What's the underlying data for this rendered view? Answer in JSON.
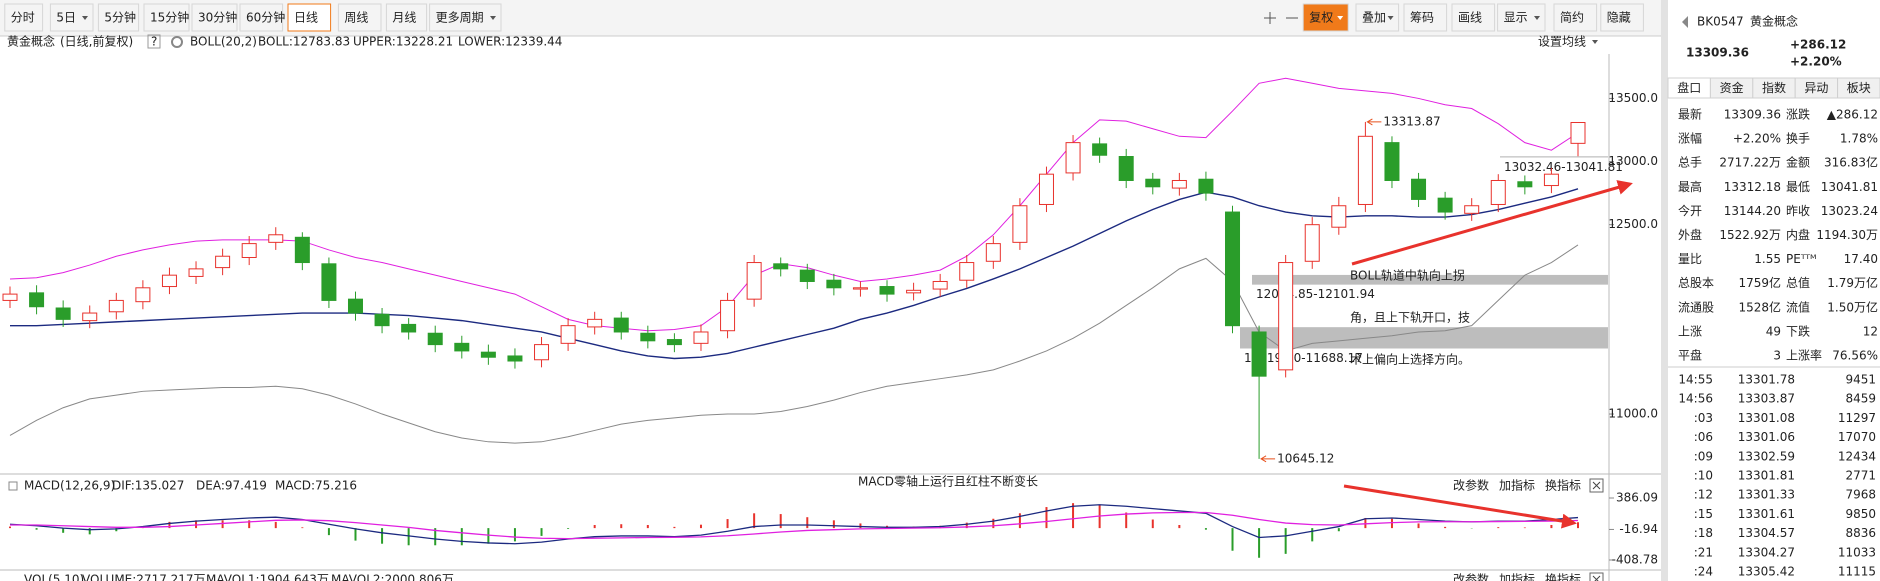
{
  "toolbar": {
    "periods": [
      {
        "label": "分时"
      },
      {
        "label": "5日"
      },
      {
        "label": "5分钟"
      },
      {
        "label": "15分钟"
      },
      {
        "label": "30分钟"
      },
      {
        "label": "60分钟"
      },
      {
        "label": "日线",
        "active": true
      },
      {
        "label": "周线"
      },
      {
        "label": "月线"
      },
      {
        "label": "更多周期"
      }
    ],
    "tools": [
      {
        "label": "复权",
        "active": true
      },
      {
        "label": "叠加"
      },
      {
        "label": "筹码"
      },
      {
        "label": "画线"
      },
      {
        "label": "显示"
      },
      {
        "label": "简约"
      },
      {
        "label": "隐藏"
      }
    ]
  },
  "info": {
    "name": "黄金概念",
    "mode": "(日线,前复权)",
    "help": "?",
    "indicator": "BOLL(20,2)",
    "boll": "BOLL:12783.83",
    "upper": "UPPER:13228.21",
    "lower": "LOWER:12339.44",
    "ma_setting": "设置均线"
  },
  "chart_data": [
    {
      "type": "candlestick",
      "ylim": [
        10525,
        13852
      ],
      "yticks": [
        {
          "value": 13500,
          "label": "13500.0"
        },
        {
          "value": 13000,
          "label": "13000.0"
        },
        {
          "value": 12500,
          "label": "12500.0"
        },
        {
          "value": 11000,
          "label": "11000.0"
        }
      ],
      "up_color": "#e8322c",
      "down_color": "#2a9d2a",
      "open": [
        11900,
        11960,
        11840,
        11740,
        11810,
        11890,
        12010,
        12090,
        12160,
        12240,
        12360,
        12400,
        12190,
        11910,
        11790,
        11710,
        11640,
        11560,
        11490,
        11460,
        11430,
        11560,
        11690,
        11760,
        11640,
        11590,
        11560,
        11660,
        11910,
        12190,
        12140,
        12060,
        11990,
        12010,
        11960,
        11990,
        12060,
        12210,
        12360,
        12660,
        12910,
        13140,
        13040,
        12860,
        12790,
        12860,
        12600,
        11650,
        11350,
        12210,
        12480,
        12660,
        13150,
        12860,
        12710,
        12590,
        12660,
        12840,
        12810,
        13144.2
      ],
      "high": [
        12010,
        12020,
        11900,
        11860,
        11960,
        12060,
        12160,
        12210,
        12310,
        12410,
        12480,
        12440,
        12240,
        11970,
        11840,
        11760,
        11700,
        11620,
        11550,
        11520,
        11610,
        11760,
        11810,
        11810,
        11700,
        11640,
        11710,
        11960,
        12260,
        12240,
        12190,
        12110,
        12050,
        12060,
        12040,
        12110,
        12260,
        12410,
        12710,
        12960,
        13210,
        13190,
        13100,
        12910,
        12910,
        12920,
        12650,
        11700,
        12260,
        12560,
        12720,
        13313.87,
        13200,
        12910,
        12760,
        12710,
        12900,
        12890,
        12950,
        13312.18
      ],
      "low": [
        11840,
        11790,
        11690,
        11680,
        11750,
        11830,
        11950,
        12030,
        12100,
        12180,
        12300,
        12140,
        11840,
        11740,
        11640,
        11590,
        11490,
        11440,
        11390,
        11360,
        11370,
        11500,
        11630,
        11590,
        11520,
        11490,
        11500,
        11600,
        11850,
        12090,
        11990,
        11940,
        11930,
        11890,
        11900,
        11930,
        12000,
        12150,
        12300,
        12600,
        12850,
        12990,
        12790,
        12740,
        12730,
        12690,
        11640,
        10645.12,
        11290,
        12150,
        12420,
        12600,
        12790,
        12640,
        12540,
        12530,
        12600,
        12740,
        12750,
        13041.81
      ],
      "close": [
        11950,
        11850,
        11750,
        11800,
        11900,
        12000,
        12100,
        12150,
        12250,
        12350,
        12420,
        12200,
        11900,
        11800,
        11700,
        11650,
        11550,
        11500,
        11450,
        11420,
        11550,
        11700,
        11750,
        11650,
        11580,
        11550,
        11650,
        11900,
        12200,
        12150,
        12050,
        12000,
        12000,
        11950,
        11980,
        12050,
        12200,
        12350,
        12650,
        12900,
        13150,
        13050,
        12850,
        12800,
        12850,
        12750,
        11700,
        11300,
        12200,
        12500,
        12650,
        13200,
        12850,
        12700,
        12600,
        12650,
        12850,
        12800,
        12900,
        13309.36
      ],
      "boll": {
        "upper": {
          "color": "#e020e0",
          "values": [
            12070,
            12080,
            12120,
            12180,
            12250,
            12300,
            12340,
            12370,
            12380,
            12380,
            12380,
            12370,
            12300,
            12240,
            12200,
            12150,
            12100,
            12050,
            12000,
            11950,
            11850,
            11750,
            11700,
            11680,
            11660,
            11670,
            11700,
            11850,
            12100,
            12190,
            12160,
            12100,
            12050,
            12070,
            12100,
            12140,
            12250,
            12420,
            12650,
            12900,
            13150,
            13330,
            13320,
            13260,
            13200,
            13190,
            13400,
            13620,
            13660,
            13620,
            13580,
            13560,
            13540,
            13500,
            13450,
            13420,
            13300,
            13150,
            13090,
            13228.21
          ]
        },
        "mid": {
          "color": "#1c2a80",
          "values": [
            11700,
            11700,
            11710,
            11720,
            11730,
            11740,
            11750,
            11760,
            11770,
            11780,
            11790,
            11800,
            11800,
            11800,
            11790,
            11780,
            11760,
            11740,
            11710,
            11680,
            11650,
            11600,
            11550,
            11500,
            11460,
            11440,
            11450,
            11480,
            11530,
            11580,
            11630,
            11680,
            11750,
            11800,
            11860,
            11930,
            11995,
            12070,
            12150,
            12240,
            12330,
            12430,
            12530,
            12620,
            12700,
            12757,
            12720,
            12650,
            12600,
            12570,
            12560,
            12570,
            12570,
            12560,
            12560,
            12580,
            12620,
            12670,
            12720,
            12783.83
          ]
        },
        "lower": {
          "color": "#888888",
          "values": [
            10830,
            10950,
            11050,
            11120,
            11150,
            11180,
            11190,
            11200,
            11210,
            11210,
            11220,
            11200,
            11150,
            11080,
            11000,
            10930,
            10860,
            10810,
            10780,
            10770,
            10780,
            10820,
            10870,
            10920,
            10950,
            10970,
            10990,
            11000,
            11000,
            11020,
            11060,
            11110,
            11170,
            11220,
            11250,
            11280,
            11310,
            11350,
            11420,
            11500,
            11600,
            11720,
            11860,
            12000,
            12150,
            12233,
            12050,
            11650,
            11500,
            11560,
            11580,
            11600,
            11620,
            11650,
            11660,
            11700,
            11900,
            12100,
            12200,
            12339.44
          ]
        }
      },
      "high_label": {
        "value": 13313.87,
        "label": "13313.87"
      },
      "low_label": {
        "value": 10645.12,
        "label": "10645.12"
      },
      "bands": [
        {
          "range": [
            12024.85,
            12101.94
          ],
          "label": "12024.85-12101.94"
        },
        {
          "range": [
            11519.1,
            11688.17
          ],
          "label": "11519.10-11688.17"
        },
        {
          "range": [
            13032.46,
            13041.81
          ],
          "label": "13032.46-13041.81"
        }
      ],
      "note": [
        "BOLL轨道中轨向上拐",
        "角，且上下轨开口，技",
        "术上偏向上选择方向。"
      ],
      "note_color": "#e8322c"
    },
    {
      "type": "macd",
      "title": "MACD(12,26,9)",
      "dif_label": "DIF:135.027",
      "dea_label": "DEA:97.419",
      "macd_label": "MACD:75.216",
      "ylim": [
        -408.78,
        386.09
      ],
      "yticks": [
        386.09,
        -16.94,
        -408.78
      ],
      "dif": {
        "color": "#1c2a80",
        "values": [
          50,
          30,
          0,
          -20,
          -10,
          20,
          60,
          90,
          110,
          130,
          140,
          110,
          50,
          -10,
          -60,
          -100,
          -140,
          -170,
          -190,
          -200,
          -180,
          -140,
          -110,
          -100,
          -100,
          -110,
          -90,
          -40,
          20,
          40,
          40,
          30,
          20,
          10,
          10,
          20,
          50,
          90,
          150,
          220,
          280,
          300,
          280,
          250,
          220,
          190,
          20,
          -120,
          -100,
          -40,
          20,
          120,
          130,
          110,
          90,
          80,
          90,
          90,
          110,
          135.027
        ]
      },
      "dea": {
        "color": "#e020e0",
        "values": [
          40,
          40,
          30,
          20,
          10,
          10,
          20,
          40,
          60,
          80,
          100,
          105,
          95,
          70,
          40,
          10,
          -30,
          -60,
          -90,
          -115,
          -130,
          -135,
          -130,
          -125,
          -120,
          -118,
          -112,
          -98,
          -75,
          -50,
          -30,
          -20,
          -10,
          -5,
          0,
          5,
          15,
          30,
          55,
          85,
          120,
          155,
          180,
          195,
          200,
          200,
          165,
          110,
          65,
          45,
          40,
          55,
          70,
          80,
          82,
          82,
          84,
          86,
          90,
          97.419
        ]
      },
      "hist": {
        "up_color": "#e8322c",
        "down_color": "#2a9d2a",
        "values": [
          20,
          -20,
          -60,
          -80,
          -40,
          20,
          80,
          100,
          100,
          100,
          80,
          10,
          -90,
          -160,
          -200,
          -220,
          -220,
          -220,
          -200,
          -170,
          -100,
          -10,
          40,
          50,
          40,
          16,
          44,
          116,
          190,
          180,
          140,
          100,
          60,
          30,
          20,
          30,
          70,
          120,
          190,
          270,
          320,
          290,
          200,
          110,
          40,
          -20,
          -290,
          -380,
          -330,
          -170,
          -40,
          130,
          120,
          60,
          16,
          -4,
          12,
          8,
          40,
          75.216
        ]
      },
      "note": "MACD零轴上运行且红柱不断变长",
      "note_color": "#e8322c"
    }
  ],
  "panel_tools": [
    "改参数",
    "加指标",
    "换指标"
  ],
  "vol": {
    "title": "VOL(5,10)",
    "volume": "VOLUME:2717.217万",
    "mavol1": "MAVOL1:1904.643万",
    "mavol2": "MAVOL2:2000.806万"
  },
  "side": {
    "code": "BK0547",
    "name": "黄金概念",
    "price": "13309.36",
    "change": "+286.12",
    "pct": "+2.20%",
    "tabs": [
      "盘口",
      "资金",
      "指数",
      "异动",
      "板块"
    ],
    "quote": [
      [
        {
          "label": "最新",
          "value": "13309.36",
          "color": "#e00000"
        },
        {
          "label": "涨跌",
          "value": "▲286.12",
          "color": "#e00000"
        }
      ],
      [
        {
          "label": "涨幅",
          "value": "+2.20%",
          "color": "#e00000"
        },
        {
          "label": "换手",
          "value": "1.78%",
          "color": "#222222"
        }
      ],
      [
        {
          "label": "总手",
          "value": "2717.22万",
          "color": "#222222"
        },
        {
          "label": "金额",
          "value": "316.83亿",
          "color": "#1a6fd0"
        }
      ],
      [
        {
          "label": "最高",
          "value": "13312.18",
          "color": "#e00000"
        },
        {
          "label": "最低",
          "value": "13041.81",
          "color": "#e00000"
        }
      ],
      [
        {
          "label": "今开",
          "value": "13144.20",
          "color": "#e00000"
        },
        {
          "label": "昨收",
          "value": "13023.24",
          "color": "#222222"
        }
      ],
      [
        {
          "label": "外盘",
          "value": "1522.92万",
          "color": "#e00000"
        },
        {
          "label": "内盘",
          "value": "1194.30万",
          "color": "#1a9a1a"
        }
      ],
      [
        {
          "label": "量比",
          "value": "1.55",
          "color": "#e00000"
        },
        {
          "label": "PEᵀᵀᴹ",
          "value": "17.40",
          "color": "#222222"
        }
      ],
      [
        {
          "label": "总股本",
          "value": "1759亿",
          "color": "#222222"
        },
        {
          "label": "总值",
          "value": "1.79万亿",
          "color": "#222222"
        }
      ],
      [
        {
          "label": "流通股",
          "value": "1528亿",
          "color": "#222222"
        },
        {
          "label": "流值",
          "value": "1.50万亿",
          "color": "#222222"
        }
      ],
      [
        {
          "label": "上涨",
          "value": "49",
          "color": "#e00000"
        },
        {
          "label": "下跌",
          "value": "12",
          "color": "#1a9a1a"
        }
      ],
      [
        {
          "label": "平盘",
          "value": "3",
          "color": "#222222"
        },
        {
          "label": "上涨率",
          "value": "76.56%",
          "color": "#222222"
        }
      ]
    ],
    "ticks": [
      {
        "time": "14:55",
        "price": "13301.78",
        "vol": "9451",
        "vol_color": "#e00000"
      },
      {
        "time": "14:56",
        "price": "13303.87",
        "vol": "8459",
        "vol_color": "#e00000"
      },
      {
        "time": ":03",
        "price": "13301.08",
        "vol": "11297",
        "vol_color": "#1a9a1a"
      },
      {
        "time": ":06",
        "price": "13301.06",
        "vol": "17070",
        "vol_color": "#e00000"
      },
      {
        "time": ":09",
        "price": "13302.59",
        "vol": "12434",
        "vol_color": "#1a9a1a"
      },
      {
        "time": ":10",
        "price": "13301.81",
        "vol": "2771",
        "vol_color": "#e00000"
      },
      {
        "time": ":12",
        "price": "13301.33",
        "vol": "7968",
        "vol_color": "#1a9a1a"
      },
      {
        "time": ":15",
        "price": "13301.61",
        "vol": "9850",
        "vol_color": "#e00000"
      },
      {
        "time": ":18",
        "price": "13304.57",
        "vol": "8836",
        "vol_color": "#e00000"
      },
      {
        "time": ":21",
        "price": "13304.27",
        "vol": "11033",
        "vol_color": "#1a9a1a"
      },
      {
        "time": ":24",
        "price": "13305.42",
        "vol": "11115",
        "vol_color": "#e00000"
      }
    ]
  }
}
